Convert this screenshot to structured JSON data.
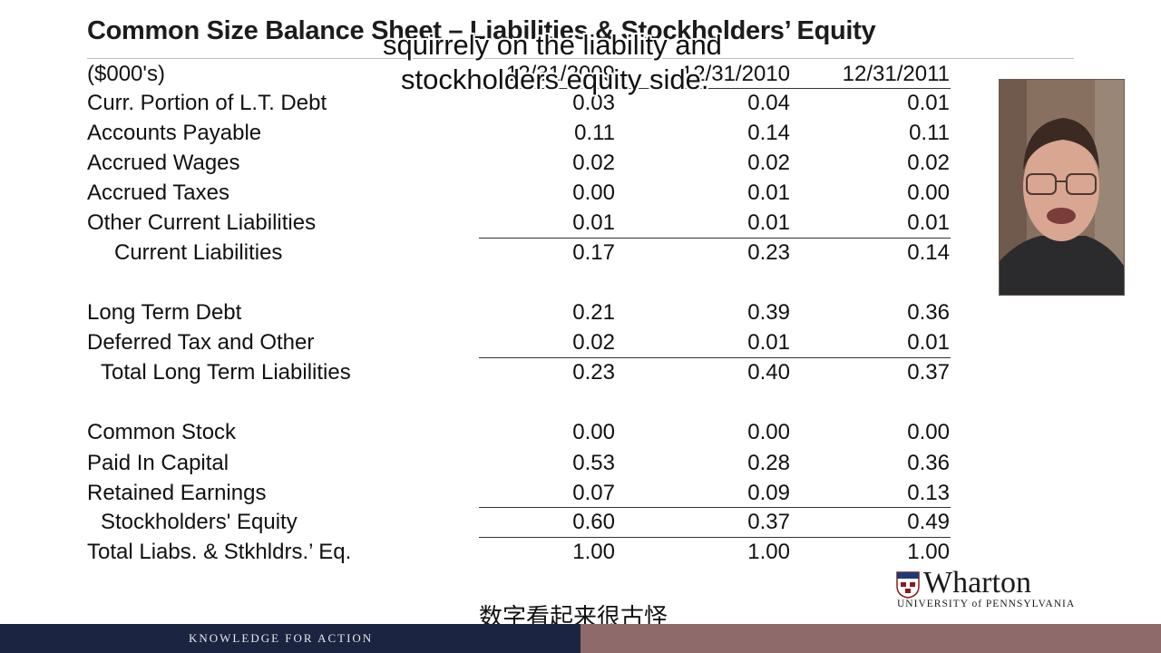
{
  "title": "Common Size Balance Sheet – Liabilities & Stockholders’ Equity",
  "units": "($000's)",
  "columns": [
    "12/31/2009",
    "12/31/2010",
    "12/31/2011"
  ],
  "rows": [
    {
      "label": "Curr. Portion of  L.T. Debt",
      "values": [
        "0.03",
        "0.04",
        "0.01"
      ]
    },
    {
      "label": "Accounts Payable",
      "values": [
        "0.11",
        "0.14",
        "0.11"
      ]
    },
    {
      "label": "Accrued Wages",
      "values": [
        "0.02",
        "0.02",
        "0.02"
      ]
    },
    {
      "label": "Accrued Taxes",
      "values": [
        "0.00",
        "0.01",
        "0.00"
      ]
    },
    {
      "label": "Other Current Liabilities",
      "values": [
        "0.01",
        "0.01",
        "0.01"
      ]
    },
    {
      "label": "Current Liabilities",
      "values": [
        "0.17",
        "0.23",
        "0.14"
      ]
    },
    {
      "label": "Long Term Debt",
      "values": [
        "0.21",
        "0.39",
        "0.36"
      ]
    },
    {
      "label": "Deferred Tax and Other",
      "values": [
        "0.02",
        "0.01",
        "0.01"
      ]
    },
    {
      "label": "Total Long Term Liabilities",
      "values": [
        "0.23",
        "0.40",
        "0.37"
      ]
    },
    {
      "label": "Common Stock",
      "values": [
        "0.00",
        "0.00",
        "0.00"
      ]
    },
    {
      "label": "Paid In Capital",
      "values": [
        "0.53",
        "0.28",
        "0.36"
      ]
    },
    {
      "label": "Retained Earnings",
      "values": [
        "0.07",
        "0.09",
        "0.13"
      ]
    },
    {
      "label": "Stockholders' Equity",
      "values": [
        "0.60",
        "0.37",
        "0.49"
      ]
    },
    {
      "label": "Total Liabs. & Stkhldrs.’ Eq.",
      "values": [
        "1.00",
        "1.00",
        "1.00"
      ]
    }
  ],
  "subtitles": {
    "en_line1": "squirrely on the liability and",
    "en_line2": "stockholders equity side.",
    "zh": "数字看起来很古怪"
  },
  "logo": {
    "name": "Wharton",
    "subtitle": "UNIVERSITY of PENNSYLVANIA"
  },
  "footer": {
    "tagline": "KNOWLEDGE FOR ACTION"
  },
  "colors": {
    "footer_navy": "#1b2440",
    "footer_mauve": "#8f6a6a"
  }
}
